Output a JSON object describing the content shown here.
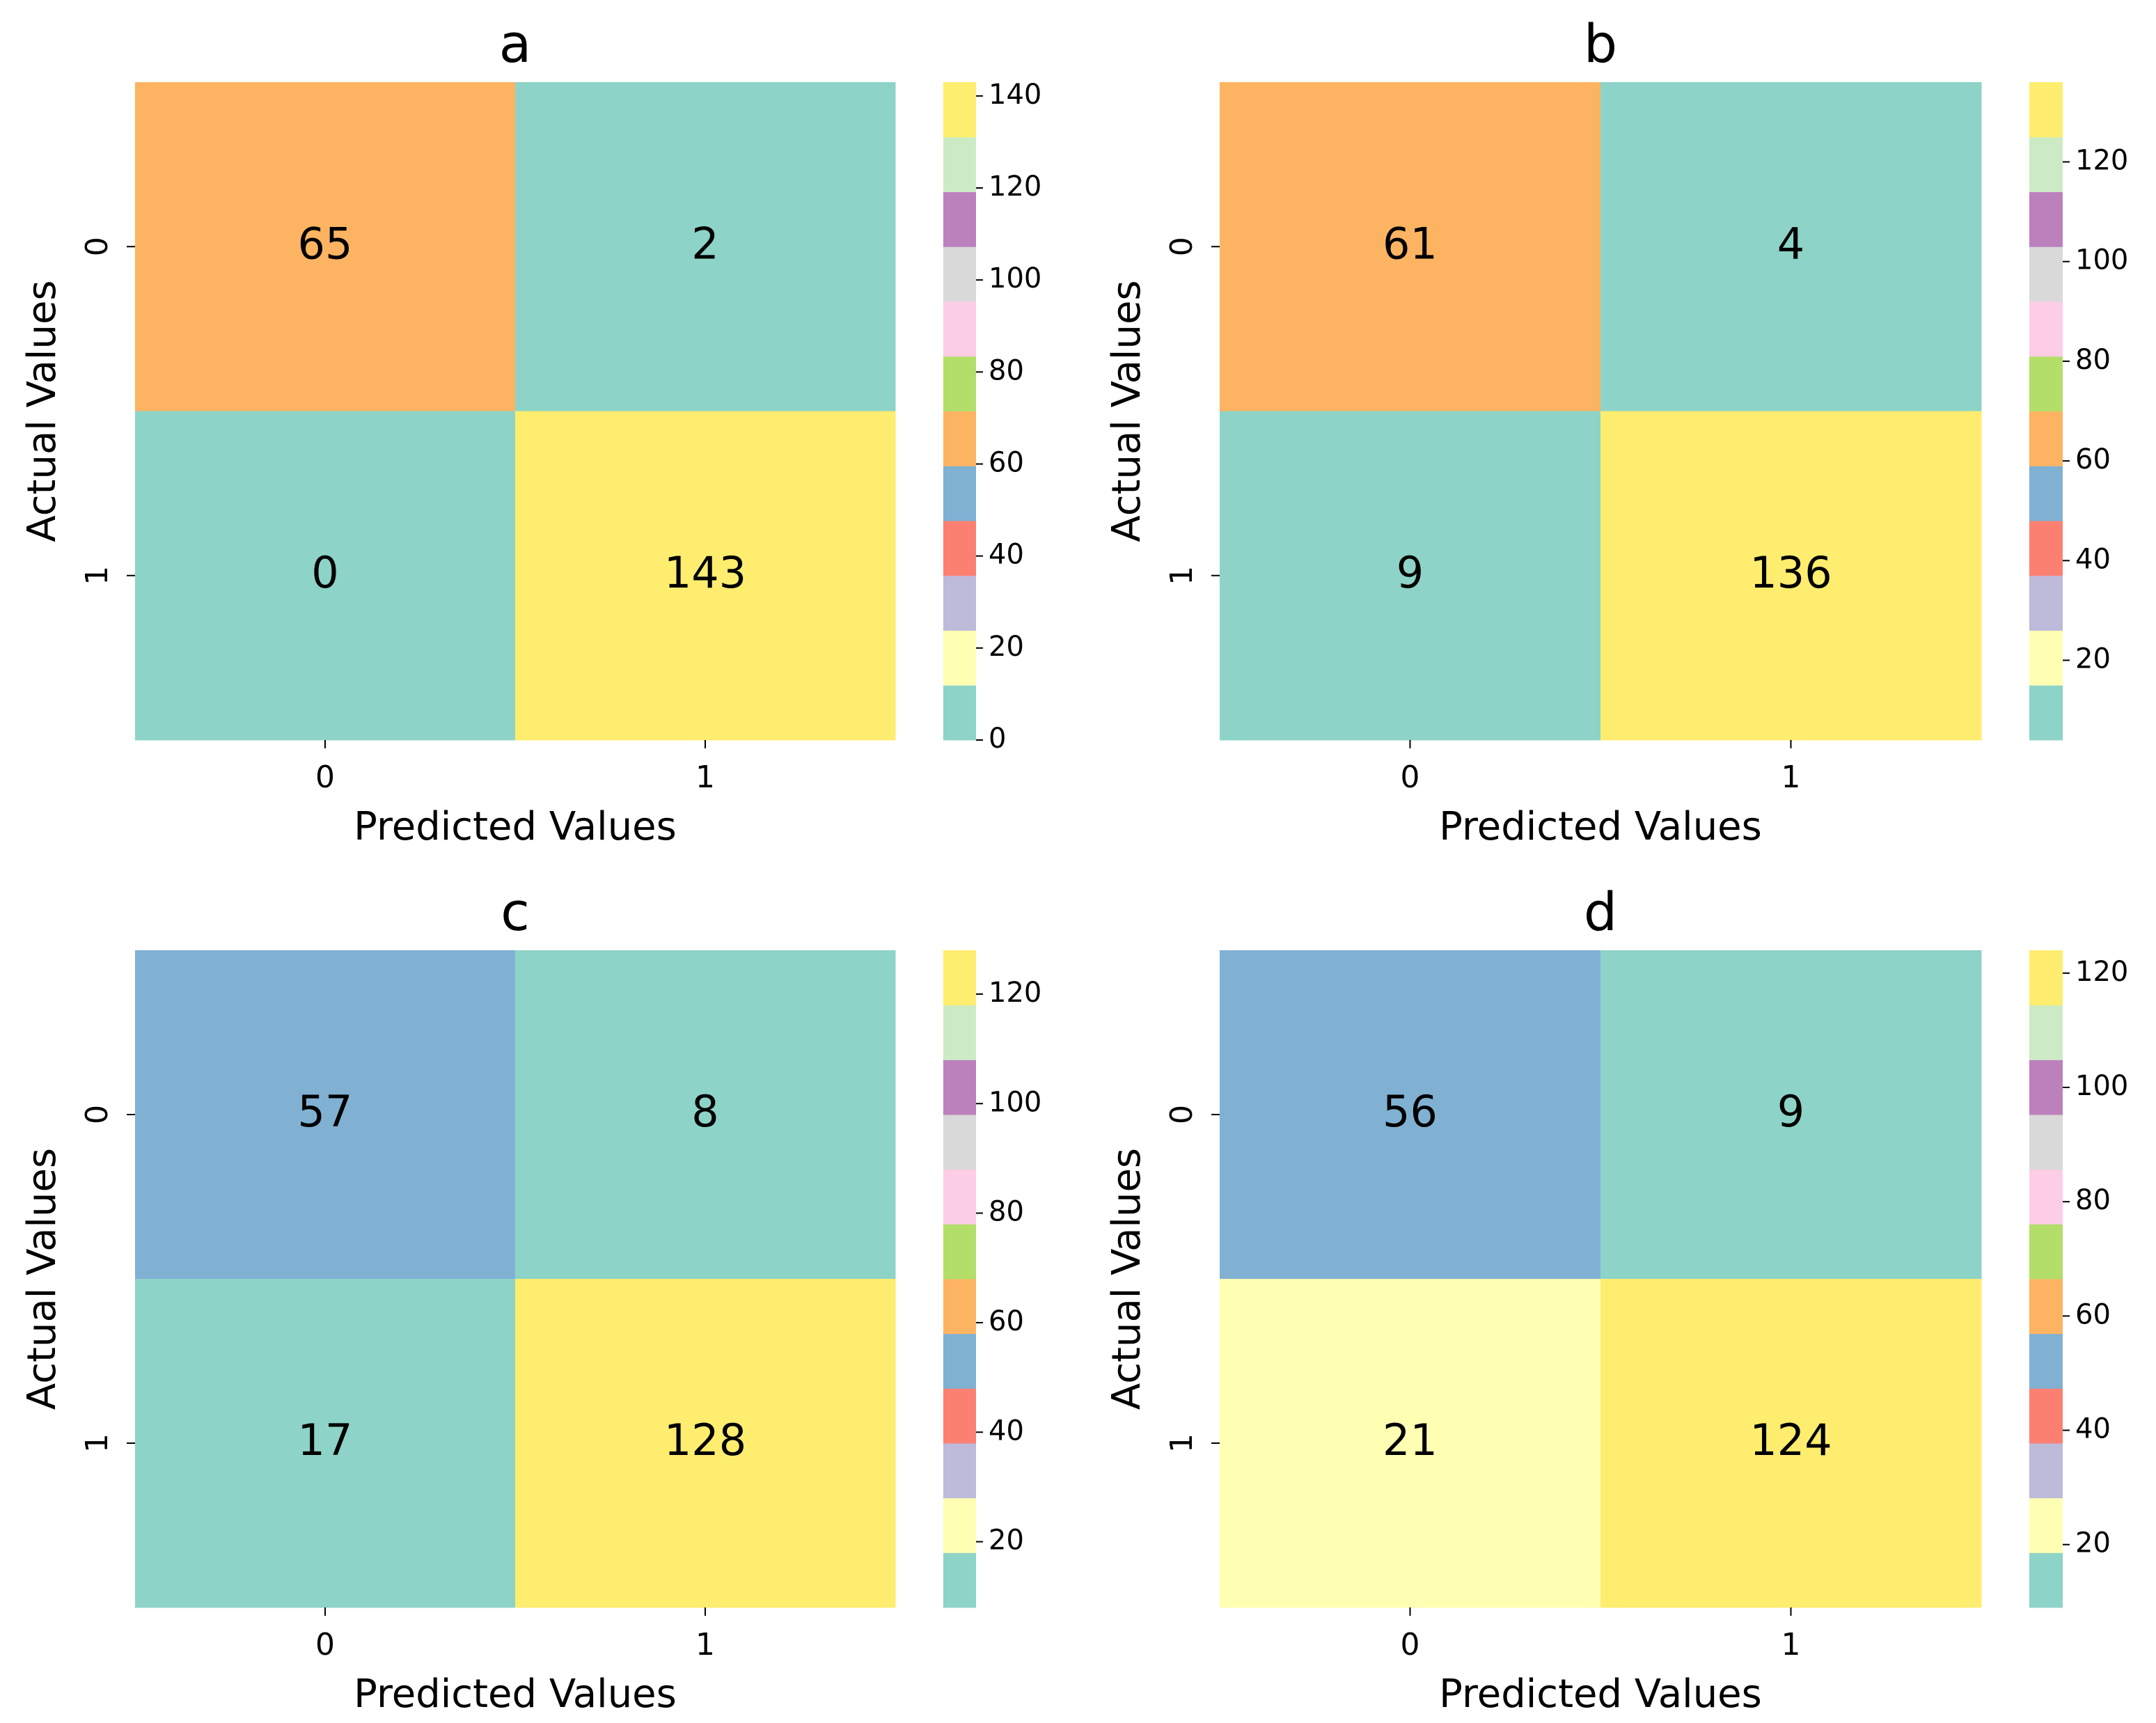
{
  "chart_data": [
    {
      "type": "heatmap",
      "title": "a",
      "xlabel": "Predicted Values",
      "ylabel": "Actual Values",
      "x_categories": [
        "0",
        "1"
      ],
      "y_categories": [
        "0",
        "1"
      ],
      "values": [
        [
          65,
          2
        ],
        [
          0,
          143
        ]
      ],
      "clim": [
        0,
        143
      ],
      "cticks": [
        0,
        20,
        40,
        60,
        80,
        100,
        120,
        140
      ],
      "colormap": [
        "#8dd3c7",
        "#ffffb3",
        "#bebada",
        "#fb8072",
        "#80b1d3",
        "#fdb462",
        "#b3de69",
        "#fccde5",
        "#d9d9d9",
        "#bc80bd",
        "#ccebc5",
        "#ffed6f"
      ]
    },
    {
      "type": "heatmap",
      "title": "b",
      "xlabel": "Predicted Values",
      "ylabel": "Actual Values",
      "x_categories": [
        "0",
        "1"
      ],
      "y_categories": [
        "0",
        "1"
      ],
      "values": [
        [
          61,
          4
        ],
        [
          9,
          136
        ]
      ],
      "clim": [
        4,
        136
      ],
      "cticks": [
        20,
        40,
        60,
        80,
        100,
        120
      ],
      "colormap": [
        "#8dd3c7",
        "#ffffb3",
        "#bebada",
        "#fb8072",
        "#80b1d3",
        "#fdb462",
        "#b3de69",
        "#fccde5",
        "#d9d9d9",
        "#bc80bd",
        "#ccebc5",
        "#ffed6f"
      ]
    },
    {
      "type": "heatmap",
      "title": "c",
      "xlabel": "Predicted Values",
      "ylabel": "Actual Values",
      "x_categories": [
        "0",
        "1"
      ],
      "y_categories": [
        "0",
        "1"
      ],
      "values": [
        [
          57,
          8
        ],
        [
          17,
          128
        ]
      ],
      "clim": [
        8,
        128
      ],
      "cticks": [
        20,
        40,
        60,
        80,
        100,
        120
      ],
      "colormap": [
        "#8dd3c7",
        "#ffffb3",
        "#bebada",
        "#fb8072",
        "#80b1d3",
        "#fdb462",
        "#b3de69",
        "#fccde5",
        "#d9d9d9",
        "#bc80bd",
        "#ccebc5",
        "#ffed6f"
      ]
    },
    {
      "type": "heatmap",
      "title": "d",
      "xlabel": "Predicted Values",
      "ylabel": "Actual Values",
      "x_categories": [
        "0",
        "1"
      ],
      "y_categories": [
        "0",
        "1"
      ],
      "values": [
        [
          56,
          9
        ],
        [
          21,
          124
        ]
      ],
      "clim": [
        9,
        124
      ],
      "cticks": [
        20,
        40,
        60,
        80,
        100,
        120
      ],
      "colormap": [
        "#8dd3c7",
        "#ffffb3",
        "#bebada",
        "#fb8072",
        "#80b1d3",
        "#fdb462",
        "#b3de69",
        "#fccde5",
        "#d9d9d9",
        "#bc80bd",
        "#ccebc5",
        "#ffed6f"
      ]
    }
  ]
}
